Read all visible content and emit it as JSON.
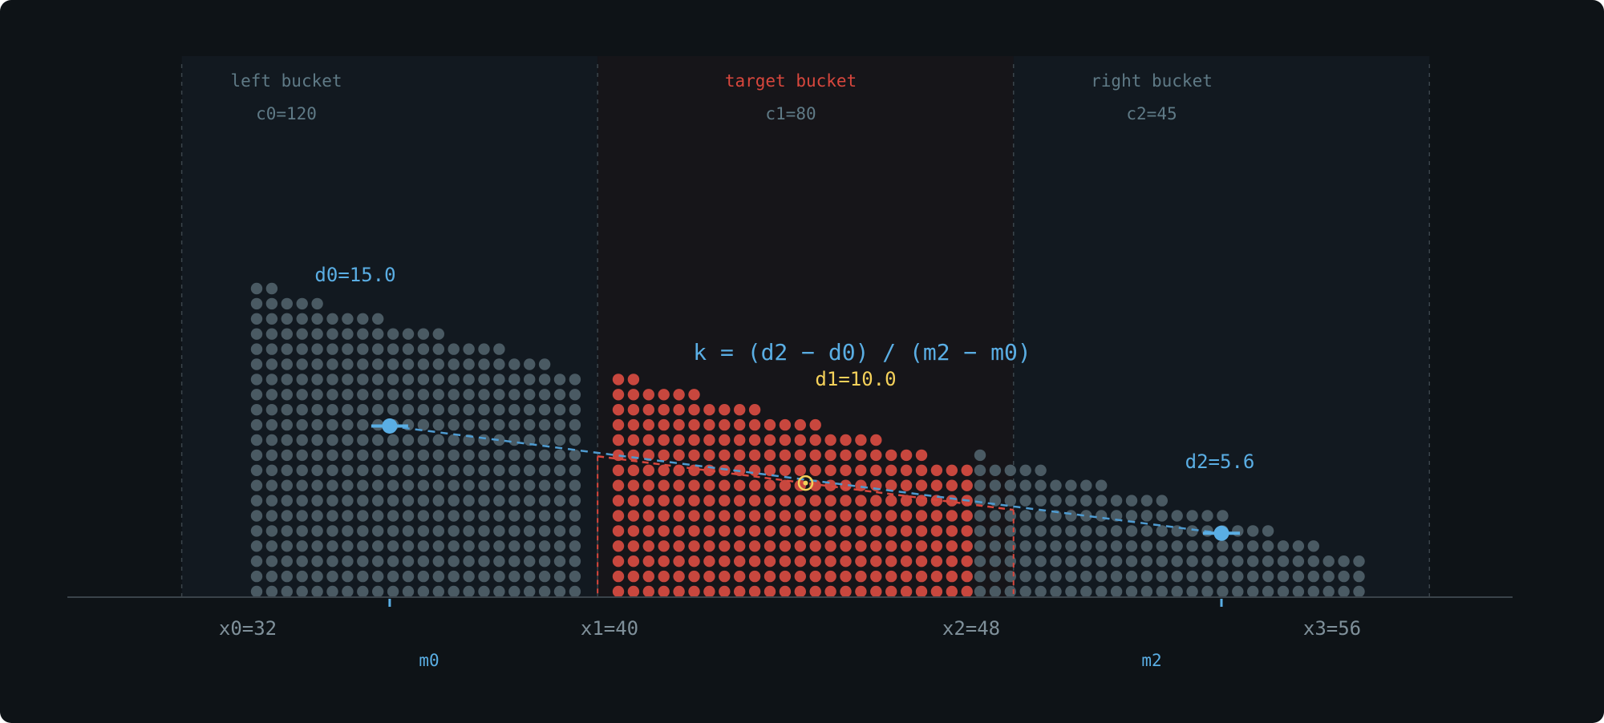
{
  "buckets": [
    {
      "title": "left bucket",
      "count_label": "c0=120",
      "title_color": "#5f7a86"
    },
    {
      "title": "target bucket",
      "count_label": "c1=80",
      "title_color": "#d8473d"
    },
    {
      "title": "right bucket",
      "count_label": "c2=45",
      "title_color": "#5f7a86"
    }
  ],
  "boundaries": [
    {
      "label": "x0=32",
      "value": 32
    },
    {
      "label": "x1=40",
      "value": 40
    },
    {
      "label": "x2=48",
      "value": 48
    },
    {
      "label": "x3=56",
      "value": 56
    }
  ],
  "midpoints": [
    {
      "label": "m0",
      "value": 36
    },
    {
      "label": "m2",
      "value": 52
    }
  ],
  "density_points": {
    "d0": {
      "label": "d0=15.0",
      "value": 15.0
    },
    "d1": {
      "label": "d1=10.0",
      "value": 10.0
    },
    "d2": {
      "label": "d2=5.6",
      "value": 5.6
    }
  },
  "formula": "k = (d2 − d0) / (m2 − m0)",
  "colors": {
    "background": "#0e1317",
    "side_region": "#121920",
    "target_region": "#161519",
    "gray_dot": "#4a5a63",
    "red_dot": "#c8473e",
    "blue": "#5aaee4",
    "yellow": "#f5d15a",
    "label_gray": "#7f909a",
    "baseline": "#3a434a"
  },
  "column_heights": {
    "left": [
      21,
      21,
      20,
      20,
      20,
      19,
      19,
      19,
      19,
      18,
      18,
      18,
      18,
      17,
      17,
      17,
      17,
      16,
      16,
      16,
      15,
      15
    ],
    "target": [
      15,
      15,
      14,
      14,
      14,
      14,
      13,
      13,
      13,
      13,
      12,
      12,
      12,
      12,
      11,
      11,
      11,
      11,
      10,
      10,
      10,
      9,
      9,
      9
    ],
    "right": [
      10,
      9,
      9,
      9,
      9,
      8,
      8,
      8,
      8,
      7,
      7,
      7,
      7,
      6,
      6,
      6,
      6,
      5,
      5,
      5,
      4,
      4,
      4,
      3,
      3,
      3
    ]
  }
}
